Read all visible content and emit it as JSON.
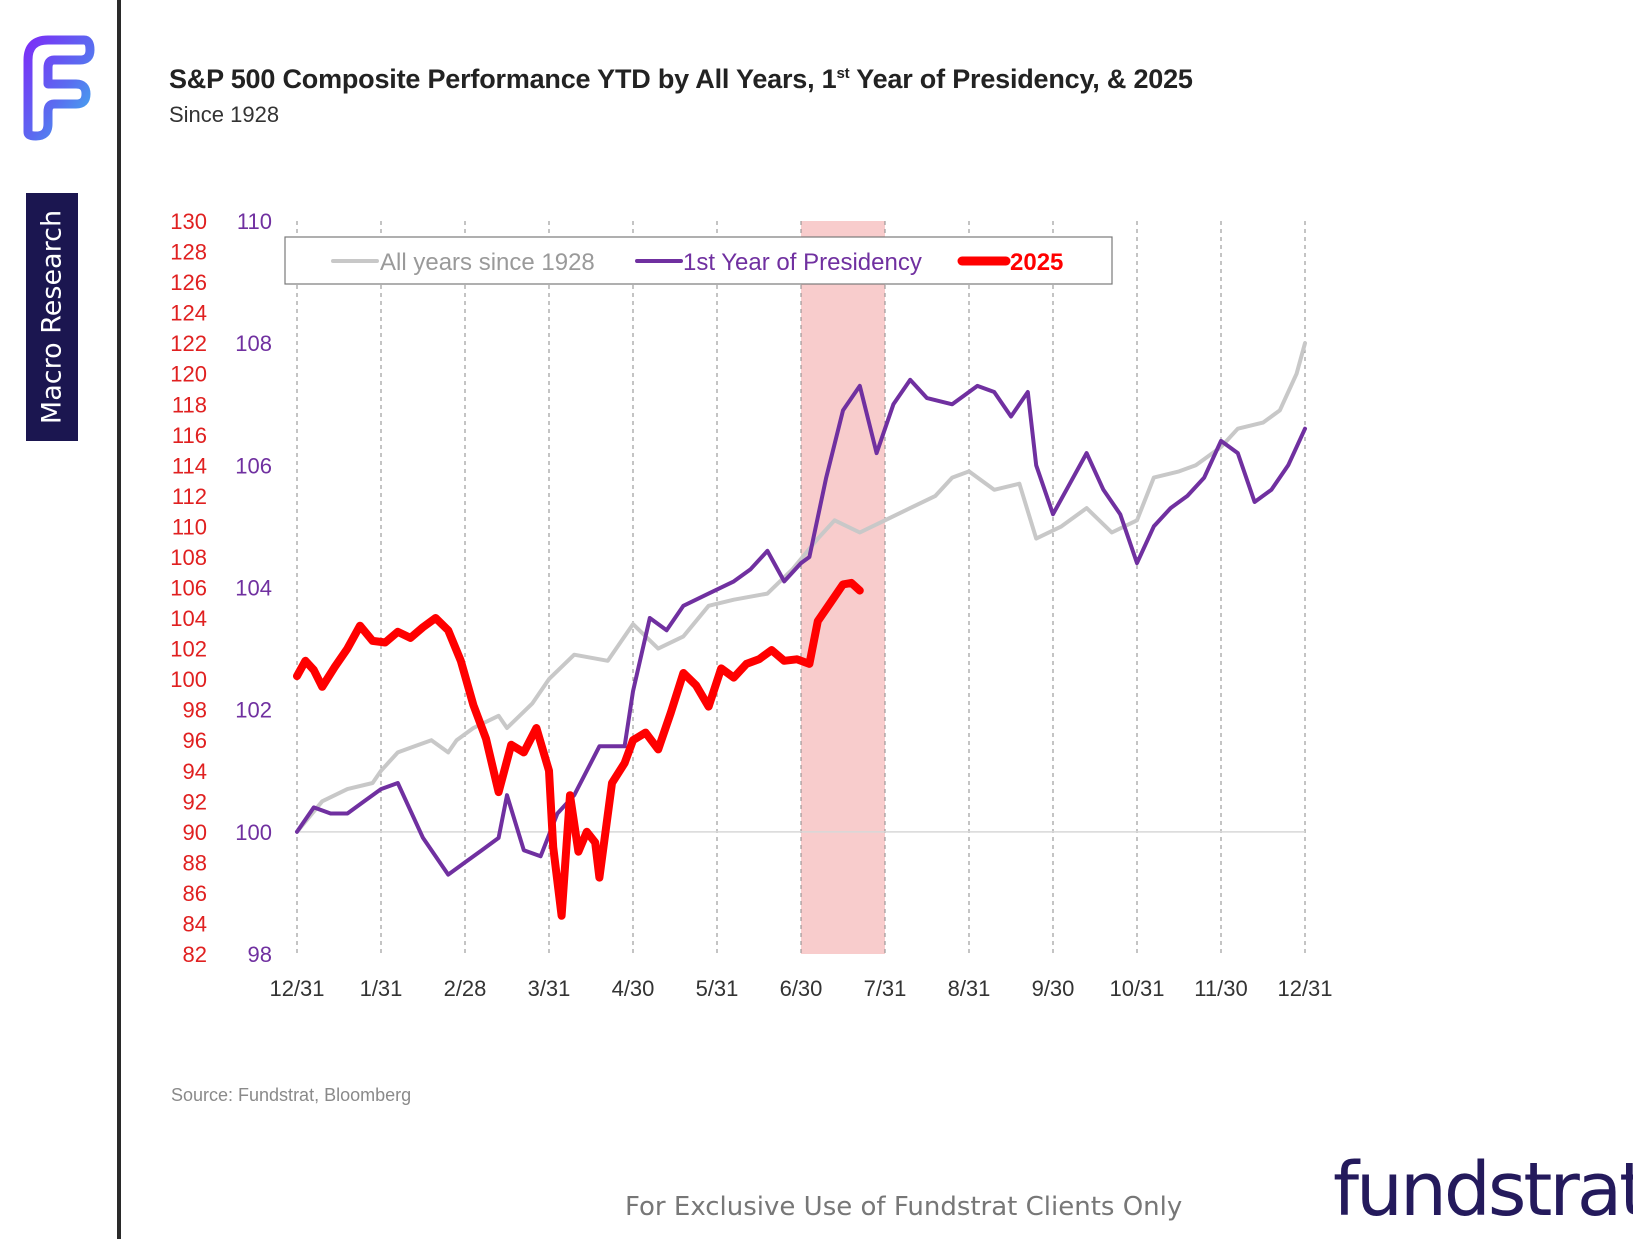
{
  "title": {
    "main": "S&P 500 Composite Performance YTD by All Years, 1",
    "sup": "st",
    "rest": " Year of Presidency, & 2025"
  },
  "subtitle": "Since 1928",
  "sidebar": {
    "tab_label": "Macro Research"
  },
  "source": "Source: Fundstrat, Bloomberg",
  "footer": {
    "exclusive": "For Exclusive Use of Fundstrat Clients Only",
    "brand": "fundstrat"
  },
  "colors": {
    "all_years": "#c8c8c8",
    "presidency": "#7030a0",
    "y2025": "#ff0000",
    "shade": "#f7c6c6",
    "left_axis": "#e02020",
    "right_axis": "#7030a0",
    "brand": "#241a5c"
  },
  "chart_data": {
    "type": "line",
    "x_ticks": [
      "12/31",
      "1/31",
      "2/28",
      "3/31",
      "4/30",
      "5/31",
      "6/30",
      "7/31",
      "8/31",
      "9/30",
      "10/31",
      "11/30",
      "12/31"
    ],
    "y_left": {
      "min": 82,
      "max": 130,
      "ticks": [
        130,
        128,
        126,
        124,
        122,
        120,
        118,
        116,
        114,
        112,
        110,
        108,
        106,
        104,
        102,
        100,
        98,
        96,
        94,
        92,
        90,
        88,
        86,
        84,
        82
      ]
    },
    "y_right": {
      "min": 98,
      "max": 110,
      "ticks": [
        110,
        108,
        106,
        104,
        102,
        100,
        98
      ]
    },
    "shaded_period": [
      "6/30",
      "7/31"
    ],
    "reference_line": {
      "axis": "right",
      "value": 100
    },
    "legend": {
      "position": "top"
    },
    "series": [
      {
        "name": "All years since 1928",
        "axis": "right",
        "color": "#c8c8c8",
        "points": [
          [
            0,
            100
          ],
          [
            0.3,
            100.5
          ],
          [
            0.6,
            100.7
          ],
          [
            0.9,
            100.8
          ],
          [
            1.0,
            101.0
          ],
          [
            1.2,
            101.3
          ],
          [
            1.4,
            101.4
          ],
          [
            1.6,
            101.5
          ],
          [
            1.8,
            101.3
          ],
          [
            1.9,
            101.5
          ],
          [
            2.1,
            101.7
          ],
          [
            2.4,
            101.9
          ],
          [
            2.5,
            101.7
          ],
          [
            2.8,
            102.1
          ],
          [
            3.0,
            102.5
          ],
          [
            3.3,
            102.9
          ],
          [
            3.7,
            102.8
          ],
          [
            4.0,
            103.4
          ],
          [
            4.3,
            103.0
          ],
          [
            4.6,
            103.2
          ],
          [
            4.9,
            103.7
          ],
          [
            5.2,
            103.8
          ],
          [
            5.6,
            103.9
          ],
          [
            5.9,
            104.3
          ],
          [
            6.2,
            104.8
          ],
          [
            6.4,
            105.1
          ],
          [
            6.7,
            104.9
          ],
          [
            7.0,
            105.1
          ],
          [
            7.3,
            105.3
          ],
          [
            7.6,
            105.5
          ],
          [
            7.8,
            105.8
          ],
          [
            8.0,
            105.9
          ],
          [
            8.3,
            105.6
          ],
          [
            8.6,
            105.7
          ],
          [
            8.8,
            104.8
          ],
          [
            9.1,
            105.0
          ],
          [
            9.4,
            105.3
          ],
          [
            9.7,
            104.9
          ],
          [
            10.0,
            105.1
          ],
          [
            10.2,
            105.8
          ],
          [
            10.5,
            105.9
          ],
          [
            10.7,
            106.0
          ],
          [
            11.0,
            106.3
          ],
          [
            11.2,
            106.6
          ],
          [
            11.5,
            106.7
          ],
          [
            11.7,
            106.9
          ],
          [
            11.9,
            107.5
          ],
          [
            12.0,
            108.0
          ]
        ]
      },
      {
        "name": "1st Year of Presidency",
        "axis": "right",
        "color": "#7030a0",
        "points": [
          [
            0,
            100
          ],
          [
            0.2,
            100.4
          ],
          [
            0.4,
            100.3
          ],
          [
            0.6,
            100.3
          ],
          [
            0.8,
            100.5
          ],
          [
            1.0,
            100.7
          ],
          [
            1.2,
            100.8
          ],
          [
            1.3,
            100.5
          ],
          [
            1.5,
            99.9
          ],
          [
            1.8,
            99.3
          ],
          [
            2.0,
            99.5
          ],
          [
            2.2,
            99.7
          ],
          [
            2.4,
            99.9
          ],
          [
            2.5,
            100.6
          ],
          [
            2.7,
            99.7
          ],
          [
            2.9,
            99.6
          ],
          [
            3.1,
            100.3
          ],
          [
            3.3,
            100.6
          ],
          [
            3.6,
            101.4
          ],
          [
            3.9,
            101.4
          ],
          [
            4.0,
            102.3
          ],
          [
            4.2,
            103.5
          ],
          [
            4.4,
            103.3
          ],
          [
            4.6,
            103.7
          ],
          [
            4.9,
            103.9
          ],
          [
            5.2,
            104.1
          ],
          [
            5.4,
            104.3
          ],
          [
            5.6,
            104.6
          ],
          [
            5.8,
            104.1
          ],
          [
            6.0,
            104.4
          ],
          [
            6.1,
            104.5
          ],
          [
            6.3,
            105.8
          ],
          [
            6.5,
            106.9
          ],
          [
            6.7,
            107.3
          ],
          [
            6.9,
            106.2
          ],
          [
            7.1,
            107.0
          ],
          [
            7.3,
            107.4
          ],
          [
            7.5,
            107.1
          ],
          [
            7.8,
            107.0
          ],
          [
            8.1,
            107.3
          ],
          [
            8.3,
            107.2
          ],
          [
            8.5,
            106.8
          ],
          [
            8.7,
            107.2
          ],
          [
            8.8,
            106.0
          ],
          [
            9.0,
            105.2
          ],
          [
            9.2,
            105.7
          ],
          [
            9.4,
            106.2
          ],
          [
            9.6,
            105.6
          ],
          [
            9.8,
            105.2
          ],
          [
            10.0,
            104.4
          ],
          [
            10.2,
            105.0
          ],
          [
            10.4,
            105.3
          ],
          [
            10.6,
            105.5
          ],
          [
            10.8,
            105.8
          ],
          [
            11.0,
            106.4
          ],
          [
            11.2,
            106.2
          ],
          [
            11.4,
            105.4
          ],
          [
            11.6,
            105.6
          ],
          [
            11.8,
            106.0
          ],
          [
            12.0,
            106.6
          ]
        ]
      },
      {
        "name": "2025",
        "axis": "left",
        "color": "#ff0000",
        "points": [
          [
            0,
            100.2
          ],
          [
            0.1,
            101.2
          ],
          [
            0.2,
            100.6
          ],
          [
            0.3,
            99.5
          ],
          [
            0.45,
            100.8
          ],
          [
            0.6,
            102.0
          ],
          [
            0.75,
            103.5
          ],
          [
            0.9,
            102.5
          ],
          [
            1.05,
            102.4
          ],
          [
            1.2,
            103.1
          ],
          [
            1.35,
            102.7
          ],
          [
            1.5,
            103.4
          ],
          [
            1.65,
            104.0
          ],
          [
            1.8,
            103.2
          ],
          [
            1.95,
            101.2
          ],
          [
            2.1,
            98.3
          ],
          [
            2.25,
            96.1
          ],
          [
            2.4,
            92.6
          ],
          [
            2.55,
            95.7
          ],
          [
            2.7,
            95.2
          ],
          [
            2.85,
            96.8
          ],
          [
            3.0,
            94.0
          ],
          [
            3.05,
            89.0
          ],
          [
            3.15,
            84.5
          ],
          [
            3.25,
            92.4
          ],
          [
            3.35,
            88.7
          ],
          [
            3.45,
            90.0
          ],
          [
            3.55,
            89.3
          ],
          [
            3.6,
            87.0
          ],
          [
            3.75,
            93.2
          ],
          [
            3.9,
            94.5
          ],
          [
            4.0,
            96.0
          ],
          [
            4.15,
            96.5
          ],
          [
            4.3,
            95.4
          ],
          [
            4.45,
            97.8
          ],
          [
            4.6,
            100.4
          ],
          [
            4.75,
            99.6
          ],
          [
            4.9,
            98.2
          ],
          [
            5.05,
            100.7
          ],
          [
            5.2,
            100.1
          ],
          [
            5.35,
            101.0
          ],
          [
            5.5,
            101.3
          ],
          [
            5.65,
            101.9
          ],
          [
            5.8,
            101.2
          ],
          [
            5.95,
            101.3
          ],
          [
            6.1,
            101.0
          ],
          [
            6.2,
            103.8
          ],
          [
            6.35,
            105.0
          ],
          [
            6.5,
            106.2
          ],
          [
            6.6,
            106.3
          ],
          [
            6.7,
            105.8
          ]
        ]
      }
    ]
  }
}
